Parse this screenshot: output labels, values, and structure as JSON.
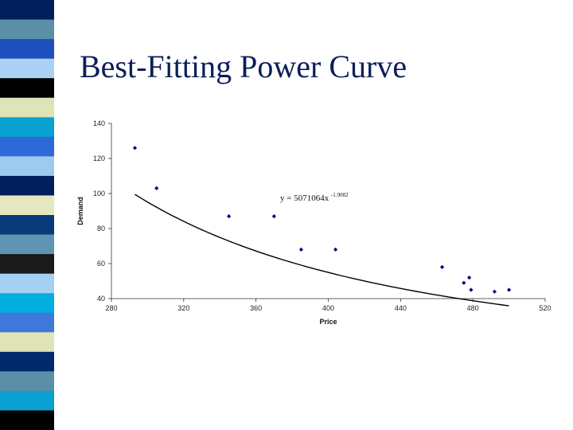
{
  "slide": {
    "title": "Best-Fitting Power Curve"
  },
  "stripe_colors": [
    "#001f5c",
    "#5a8fa8",
    "#1f4fbf",
    "#a9d2f5",
    "#000000",
    "#dfe3b8",
    "#0aa0d0",
    "#2d6ad8",
    "#9fcaf0",
    "#001f5c",
    "#e8e8c0",
    "#0a3a78",
    "#5f95b2",
    "#1a1a1a",
    "#a6d0f2",
    "#00aee0",
    "#3e78dd",
    "#dfe3b8",
    "#002a6a",
    "#5a8fa8",
    "#0aa0d0",
    "#000000"
  ],
  "chart_data": {
    "type": "scatter",
    "title": "",
    "xlabel": "Price",
    "ylabel": "Demand",
    "xlim": [
      280,
      520
    ],
    "ylim": [
      40,
      140
    ],
    "x_ticks": [
      "280",
      "320",
      "360",
      "400",
      "440",
      "480",
      "520"
    ],
    "y_ticks": [
      "40",
      "60",
      "80",
      "100",
      "120",
      "140"
    ],
    "x_tick_values": [
      280,
      320,
      360,
      400,
      440,
      480,
      520
    ],
    "y_tick_values": [
      40,
      60,
      80,
      100,
      120,
      140
    ],
    "series": [
      {
        "x": [
          293,
          305,
          345,
          370,
          385,
          404,
          463,
          475,
          478,
          479,
          492,
          500
        ],
        "y": [
          126,
          103,
          87,
          87,
          68,
          68,
          58,
          49,
          52,
          45,
          44,
          45
        ]
      }
    ],
    "trendline": {
      "type": "power",
      "a": 5071064,
      "b": -1.9082,
      "x_range": [
        293,
        500
      ]
    },
    "equation": {
      "base": "y = 5071064x",
      "exponent": "-1.9082"
    },
    "marker_color": "#00008b",
    "line_color": "#000000",
    "grid": false
  }
}
